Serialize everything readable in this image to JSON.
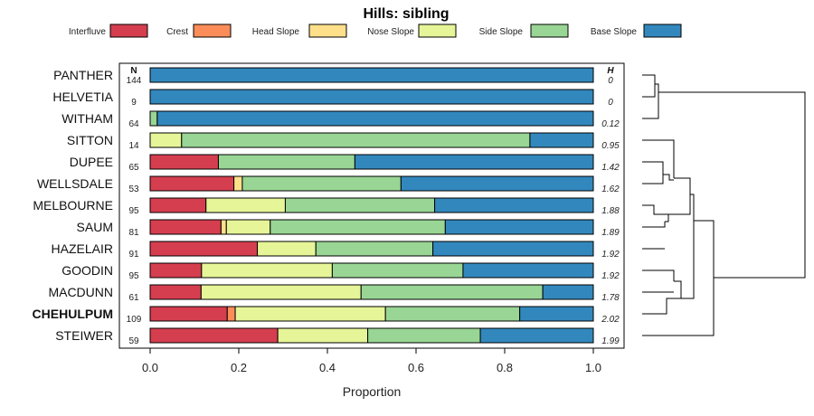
{
  "chart_data": {
    "type": "bar",
    "orientation": "horizontal",
    "stacked": true,
    "title": "Hills: sibling",
    "xlabel": "Proportion",
    "xlim": [
      0,
      1
    ],
    "xticks": [
      "0.0",
      "0.2",
      "0.4",
      "0.6",
      "0.8",
      "1.0"
    ],
    "n_header": "N",
    "h_header": "H",
    "legend_position": "top",
    "series": [
      {
        "name": "Interfluve",
        "color": "#d53e4f"
      },
      {
        "name": "Crest",
        "color": "#fc8d59"
      },
      {
        "name": "Head Slope",
        "color": "#fee08b"
      },
      {
        "name": "Nose Slope",
        "color": "#e6f598"
      },
      {
        "name": "Side Slope",
        "color": "#99d594"
      },
      {
        "name": "Base Slope",
        "color": "#3288bd"
      }
    ],
    "rows": [
      {
        "label": "PANTHER",
        "bold": false,
        "n": "144",
        "h": "0",
        "values": [
          0,
          0,
          0,
          0,
          0,
          1.0
        ]
      },
      {
        "label": "HELVETIA",
        "bold": false,
        "n": "9",
        "h": "0",
        "values": [
          0,
          0,
          0,
          0,
          0,
          1.0
        ]
      },
      {
        "label": "WITHAM",
        "bold": false,
        "n": "64",
        "h": "0.12",
        "values": [
          0,
          0,
          0,
          0,
          0.016,
          0.984
        ]
      },
      {
        "label": "SITTON",
        "bold": false,
        "n": "14",
        "h": "0.95",
        "values": [
          0,
          0,
          0,
          0.071,
          0.786,
          0.143
        ]
      },
      {
        "label": "DUPEE",
        "bold": false,
        "n": "65",
        "h": "1.42",
        "values": [
          0.154,
          0,
          0,
          0,
          0.308,
          0.538
        ]
      },
      {
        "label": "WELLSDALE",
        "bold": false,
        "n": "53",
        "h": "1.62",
        "values": [
          0.189,
          0,
          0.019,
          0,
          0.358,
          0.434
        ]
      },
      {
        "label": "MELBOURNE",
        "bold": false,
        "n": "95",
        "h": "1.88",
        "values": [
          0.126,
          0,
          0,
          0.179,
          0.337,
          0.358
        ]
      },
      {
        "label": "SAUM",
        "bold": false,
        "n": "81",
        "h": "1.89",
        "values": [
          0.16,
          0,
          0.012,
          0.099,
          0.395,
          0.334
        ]
      },
      {
        "label": "HAZELAIR",
        "bold": false,
        "n": "91",
        "h": "1.92",
        "values": [
          0.242,
          0,
          0,
          0.132,
          0.264,
          0.362
        ]
      },
      {
        "label": "GOODIN",
        "bold": false,
        "n": "95",
        "h": "1.92",
        "values": [
          0.116,
          0,
          0,
          0.295,
          0.295,
          0.294
        ]
      },
      {
        "label": "MACDUNN",
        "bold": false,
        "n": "61",
        "h": "1.78",
        "values": [
          0.115,
          0,
          0,
          0.361,
          0.41,
          0.114
        ]
      },
      {
        "label": "CHEHULPUM",
        "bold": true,
        "n": "109",
        "h": "2.02",
        "values": [
          0.174,
          0.018,
          0,
          0.339,
          0.303,
          0.166
        ]
      },
      {
        "label": "STEIWER",
        "bold": false,
        "n": "59",
        "h": "1.99",
        "values": [
          0.288,
          0,
          0,
          0.203,
          0.254,
          0.255
        ]
      }
    ]
  }
}
